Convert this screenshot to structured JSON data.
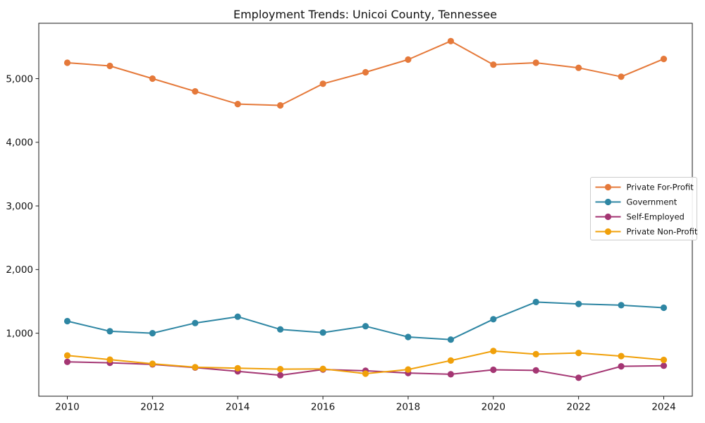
{
  "chart_data": {
    "type": "line",
    "title": "Employment Trends: Unicoi County, Tennessee",
    "xlabel": "",
    "ylabel": "",
    "x": [
      2010,
      2011,
      2012,
      2013,
      2014,
      2015,
      2016,
      2017,
      2018,
      2019,
      2020,
      2021,
      2022,
      2023,
      2024
    ],
    "series": [
      {
        "name": "Private For-Profit",
        "color": "#e5793a",
        "values": [
          5250,
          5200,
          5000,
          4800,
          4600,
          4580,
          4920,
          5100,
          5300,
          5590,
          5220,
          5250,
          5170,
          5030,
          5310
        ]
      },
      {
        "name": "Government",
        "color": "#2e86a3",
        "values": [
          1190,
          1030,
          1000,
          1160,
          1260,
          1060,
          1010,
          1110,
          940,
          900,
          1220,
          1490,
          1460,
          1440,
          1400
        ]
      },
      {
        "name": "Self-Employed",
        "color": "#a43673",
        "values": [
          550,
          535,
          510,
          460,
          400,
          340,
          430,
          410,
          375,
          355,
          425,
          415,
          300,
          480,
          490
        ]
      },
      {
        "name": "Private Non-Profit",
        "color": "#f0a00a",
        "values": [
          650,
          585,
          520,
          465,
          450,
          435,
          440,
          365,
          430,
          570,
          720,
          670,
          690,
          640,
          580
        ]
      }
    ],
    "xtick_labels": [
      "2010",
      "2012",
      "2014",
      "2016",
      "2018",
      "2020",
      "2022",
      "2024"
    ],
    "xticks": [
      2010,
      2012,
      2014,
      2016,
      2018,
      2020,
      2022,
      2024
    ],
    "ytick_labels": [
      "1,000",
      "2,000",
      "3,000",
      "4,000",
      "5,000"
    ],
    "yticks": [
      1000,
      2000,
      3000,
      4000,
      5000
    ],
    "xlim": [
      2009.33,
      2024.67
    ],
    "ylim": [
      10,
      5870
    ],
    "grid": false,
    "legend_position": "right",
    "legend_labels": [
      "Private For-Profit",
      "Government",
      "Self-Employed",
      "Private Non-Profit"
    ],
    "colors": {
      "spine": "#1a1a1a",
      "tick_text": "#111111",
      "legend_border": "#cccccc",
      "background": "#ffffff"
    }
  }
}
